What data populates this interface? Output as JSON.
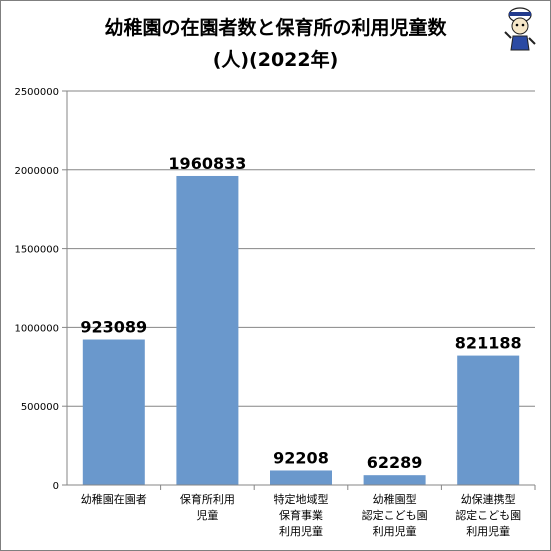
{
  "chart_data": {
    "type": "bar",
    "title_line1": "幼稚園の在園者数と保育所の利用児童数",
    "title_line2": "(人)(2022年)",
    "categories": [
      [
        "幼稚園在園者"
      ],
      [
        "保育所利用",
        "児童"
      ],
      [
        "特定地域型",
        "保育事業",
        "利用児童"
      ],
      [
        "幼稚園型",
        "認定こども園",
        "利用児童"
      ],
      [
        "幼保連携型",
        "認定こども園",
        "利用児童"
      ]
    ],
    "values": [
      923089,
      1960833,
      92208,
      62289,
      821188
    ],
    "data_labels": [
      "923089",
      "1960833",
      "92208",
      "62289",
      "821188"
    ],
    "yticks": [
      "0",
      "500000",
      "1000000",
      "1500000",
      "2000000",
      "2500000"
    ],
    "ylim": [
      0,
      2500000
    ],
    "grid": true,
    "colors": {
      "bar": "#6a98cc",
      "grid": "#868686",
      "axis": "#868686"
    },
    "mascot_icon": "mascot-character-icon"
  }
}
